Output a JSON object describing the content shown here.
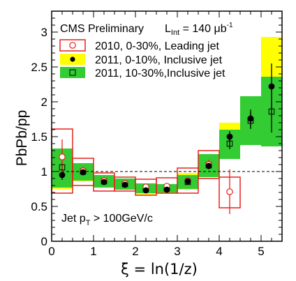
{
  "chart_data": {
    "type": "scatter",
    "annotation_main": "CMS Preliminary",
    "lumi": {
      "symbol": "L",
      "subscript": "Int",
      "text": " = 140 μb",
      "superscript": "-1"
    },
    "cut": {
      "prefix": "Jet p",
      "subscript": "T",
      "text": " > 100GeV/c"
    },
    "xlabel": "ξ = ln(1/z)",
    "ylabel": "PbPb/pp",
    "xlim": [
      0,
      5.5
    ],
    "ylim": [
      0,
      3.3
    ],
    "xticks": [
      "0",
      "1",
      "2",
      "3",
      "4",
      "5"
    ],
    "yticks": [
      "0",
      "0.5",
      "1",
      "1.5",
      "2",
      "2.5",
      "3"
    ],
    "reference_line": 1,
    "bin_edges": [
      0,
      0.5,
      1,
      1.5,
      2,
      2.5,
      3,
      3.5,
      4,
      4.5,
      5,
      5.5
    ],
    "legend": {
      "position": "top-left",
      "entries": [
        {
          "label": "2010, 0-30%,  Leading jet",
          "marker": "open-circle-box"
        },
        {
          "label": "2011, 0-10%,  Inclusive jet",
          "marker": "filled-circle-yellow-band"
        },
        {
          "label": "2011, 10-30%,Inclusive jet",
          "marker": "open-square-green-band"
        }
      ]
    },
    "colors": {
      "yellow": "#ffff00",
      "green": "#33cc33",
      "red": "#e8201a",
      "black": "#000000"
    },
    "series": [
      {
        "name": "2010, 0-30%,  Leading jet",
        "x": [
          0.25,
          0.75,
          1.25,
          1.75,
          2.25,
          2.75,
          3.25,
          3.75,
          4.25
        ],
        "y": [
          1.21,
          1.01,
          0.87,
          0.83,
          0.78,
          0.79,
          0.87,
          1.1,
          0.71
        ],
        "stat_err": [
          0.25,
          0.06,
          0.03,
          0.03,
          0.03,
          0.03,
          0.04,
          0.07,
          0.32
        ],
        "sys_low": [
          0.69,
          0.8,
          0.72,
          0.72,
          0.66,
          0.69,
          0.69,
          0.9,
          0.48
        ],
        "sys_high": [
          1.61,
          1.19,
          0.98,
          0.92,
          0.89,
          0.91,
          1.05,
          1.3,
          0.92
        ]
      },
      {
        "name": "2011, 0-10%,  Inclusive jet",
        "x": [
          0.25,
          0.75,
          1.25,
          1.75,
          2.25,
          2.75,
          3.25,
          3.75,
          4.25,
          4.75,
          5.25
        ],
        "y": [
          0.95,
          0.99,
          0.85,
          0.81,
          0.73,
          0.74,
          0.86,
          1.08,
          1.5,
          1.76,
          2.22
        ],
        "stat_err": [
          0.07,
          0.04,
          0.02,
          0.02,
          0.02,
          0.02,
          0.03,
          0.05,
          0.08,
          0.13,
          0.33
        ],
        "sys_low": [
          0.75,
          0.86,
          0.77,
          0.74,
          0.67,
          0.68,
          0.74,
          0.92,
          1.3,
          1.5,
          1.5
        ],
        "sys_high": [
          1.15,
          1.12,
          0.92,
          0.88,
          0.8,
          0.8,
          0.98,
          1.24,
          1.7,
          2.0,
          2.93
        ]
      },
      {
        "name": "2011, 10-30%,Inclusive jet",
        "x": [
          0.25,
          0.75,
          1.25,
          1.75,
          2.25,
          2.75,
          3.25,
          3.75,
          4.25,
          4.75,
          5.25
        ],
        "y": [
          1.06,
          1.0,
          0.86,
          0.82,
          0.76,
          0.76,
          0.85,
          1.09,
          1.4,
          1.73,
          1.86
        ],
        "stat_err": [
          0.06,
          0.04,
          0.02,
          0.02,
          0.02,
          0.02,
          0.03,
          0.05,
          0.08,
          0.12,
          0.3
        ],
        "sys_low": [
          0.77,
          0.87,
          0.77,
          0.74,
          0.69,
          0.7,
          0.75,
          0.92,
          1.18,
          1.38,
          1.36
        ],
        "sys_high": [
          1.33,
          1.12,
          0.95,
          0.9,
          0.83,
          0.82,
          0.95,
          1.25,
          1.6,
          2.08,
          2.36
        ]
      }
    ]
  }
}
